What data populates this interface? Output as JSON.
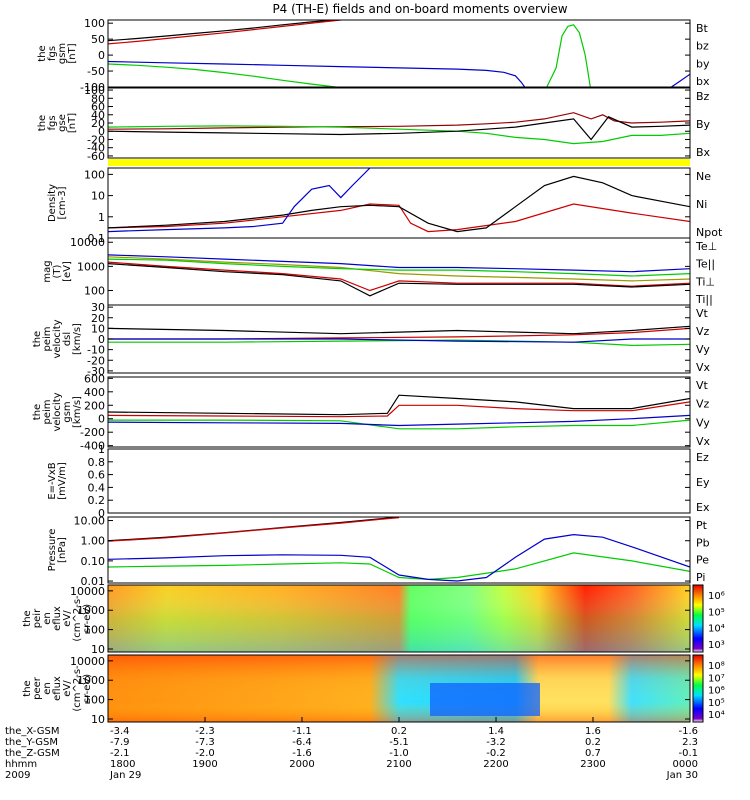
{
  "title": "P4 (TH-E) fields and on-board moments overview",
  "chart_data": [
    {
      "type": "line",
      "panel": "fgs_gsm",
      "ylabel": [
        "the",
        "fgs",
        "gsm",
        "[nT]"
      ],
      "ylim": [
        -100,
        110
      ],
      "yticks": [
        100,
        50,
        0,
        -50,
        -100
      ],
      "series": [
        {
          "name": "Bt",
          "color": "#000000",
          "x": [
            0,
            0.05,
            0.1,
            0.15,
            0.2,
            0.25,
            0.3,
            0.35,
            0.4
          ],
          "y": [
            45,
            52,
            60,
            68,
            76,
            85,
            95,
            104,
            112
          ]
        },
        {
          "name": "bz",
          "color": "#cc0000",
          "x": [
            0,
            0.05,
            0.1,
            0.15,
            0.2,
            0.25,
            0.3,
            0.35,
            0.4
          ],
          "y": [
            35,
            43,
            52,
            61,
            70,
            80,
            90,
            100,
            110
          ]
        },
        {
          "name": "by",
          "color": "#00cc00",
          "x": [
            0,
            0.05,
            0.1,
            0.15,
            0.2,
            0.25,
            0.3,
            0.35,
            0.4,
            0.45,
            0.75,
            0.77,
            0.78,
            0.79,
            0.8,
            0.81,
            0.82,
            0.83,
            0.85
          ],
          "y": [
            -28,
            -32,
            -38,
            -45,
            -55,
            -66,
            -79,
            -91,
            -102,
            -115,
            -115,
            -40,
            60,
            90,
            95,
            70,
            0,
            -115,
            -115
          ]
        },
        {
          "name": "bx",
          "color": "#0000cc",
          "x": [
            0,
            0.1,
            0.2,
            0.3,
            0.4,
            0.5,
            0.6,
            0.65,
            0.68,
            0.7,
            0.71,
            0.72,
            0.96,
            0.98,
            1.0
          ],
          "y": [
            -20,
            -24,
            -28,
            -32,
            -36,
            -40,
            -44,
            -48,
            -54,
            -65,
            -85,
            -110,
            -110,
            -85,
            -60
          ]
        }
      ]
    },
    {
      "type": "line",
      "panel": "fgs_gse",
      "ylabel": [
        "the",
        "fgs",
        "gse",
        "[nT]"
      ],
      "ylim": [
        -65,
        105
      ],
      "yticks": [
        100,
        80,
        60,
        40,
        20,
        0,
        -20,
        -40,
        -60
      ],
      "series": [
        {
          "name": "Bz",
          "color": "#990000",
          "x": [
            0,
            0.1,
            0.2,
            0.3,
            0.4,
            0.5,
            0.6,
            0.65,
            0.7,
            0.75,
            0.8,
            0.83,
            0.85,
            0.87,
            0.9,
            0.95,
            1.0
          ],
          "y": [
            5,
            6,
            8,
            10,
            11,
            12,
            15,
            18,
            22,
            30,
            45,
            30,
            40,
            25,
            20,
            22,
            25
          ]
        },
        {
          "name": "By",
          "color": "#00cc00",
          "x": [
            0,
            0.1,
            0.2,
            0.3,
            0.4,
            0.5,
            0.6,
            0.65,
            0.7,
            0.75,
            0.8,
            0.85,
            0.9,
            0.95,
            1.0
          ],
          "y": [
            10,
            12,
            13,
            12,
            10,
            5,
            0,
            -5,
            -15,
            -20,
            -30,
            -25,
            -10,
            -10,
            -5
          ]
        },
        {
          "name": "Bx",
          "color": "#000000",
          "x": [
            0,
            0.1,
            0.2,
            0.3,
            0.4,
            0.5,
            0.6,
            0.65,
            0.7,
            0.75,
            0.8,
            0.83,
            0.86,
            0.9,
            0.95,
            1.0
          ],
          "y": [
            0,
            -2,
            -4,
            -6,
            -8,
            -5,
            0,
            5,
            10,
            20,
            30,
            -20,
            35,
            10,
            12,
            15
          ]
        }
      ]
    },
    {
      "type": "line",
      "panel": "density",
      "ylabel": [
        "Density",
        "[cm-3]"
      ],
      "yscale": "log",
      "ylim": [
        0.1,
        200
      ],
      "yticks": [
        100,
        10,
        1,
        0.1
      ],
      "ytick_labels": [
        "100",
        "10",
        "1",
        "0.1"
      ],
      "series": [
        {
          "name": "Ne",
          "color": "#cc0000",
          "x": [
            0,
            0.1,
            0.2,
            0.3,
            0.4,
            0.45,
            0.5,
            0.52,
            0.55,
            0.6,
            0.7,
            0.8,
            0.9,
            1.0
          ],
          "y": [
            0.3,
            0.35,
            0.5,
            1.0,
            2.0,
            4.0,
            3.5,
            0.5,
            0.2,
            0.25,
            0.6,
            4.0,
            1.5,
            0.6
          ]
        },
        {
          "name": "Ni",
          "color": "#000000",
          "x": [
            0,
            0.1,
            0.2,
            0.3,
            0.35,
            0.4,
            0.45,
            0.5,
            0.55,
            0.6,
            0.65,
            0.7,
            0.75,
            0.8,
            0.85,
            0.9,
            1.0
          ],
          "y": [
            0.3,
            0.4,
            0.6,
            1.2,
            2.0,
            3.0,
            3.5,
            3.0,
            0.5,
            0.2,
            0.3,
            3.0,
            30,
            80,
            40,
            10,
            3.0
          ]
        },
        {
          "name": "Npot",
          "color": "#0000cc",
          "x": [
            0,
            0.1,
            0.2,
            0.25,
            0.3,
            0.32,
            0.35,
            0.38,
            0.4,
            0.42,
            0.45
          ],
          "y": [
            0.2,
            0.25,
            0.3,
            0.35,
            0.5,
            3.0,
            20,
            30,
            8,
            30,
            200
          ]
        }
      ]
    },
    {
      "type": "line",
      "panel": "temperature",
      "ylabel": [
        "mag",
        "(T)",
        "[eV]"
      ],
      "yscale": "log",
      "ylim": [
        25,
        15000
      ],
      "yticks": [
        10000,
        1000,
        100
      ],
      "ytick_labels": [
        "10000",
        "1000",
        "100"
      ],
      "series": [
        {
          "name": "Te⊥",
          "color": "#cc0000",
          "x": [
            0,
            0.1,
            0.2,
            0.3,
            0.4,
            0.45,
            0.5,
            0.6,
            0.7,
            0.8,
            0.9,
            1.0
          ],
          "y": [
            1500,
            1000,
            700,
            500,
            300,
            100,
            250,
            200,
            200,
            200,
            150,
            200
          ]
        },
        {
          "name": "Te||",
          "color": "#000000",
          "x": [
            0,
            0.1,
            0.2,
            0.3,
            0.4,
            0.45,
            0.5,
            0.6,
            0.7,
            0.8,
            0.9,
            1.0
          ],
          "y": [
            1300,
            900,
            600,
            450,
            250,
            60,
            200,
            180,
            180,
            180,
            140,
            180
          ]
        },
        {
          "name": "Ti⊥",
          "color": "#999900",
          "x": [
            0,
            0.1,
            0.2,
            0.3,
            0.4,
            0.5,
            0.6,
            0.7,
            0.8,
            0.9,
            1.0
          ],
          "y": [
            2500,
            2000,
            1500,
            1200,
            900,
            500,
            400,
            350,
            300,
            250,
            300
          ]
        },
        {
          "name": "Ti||",
          "color": "#00cc00",
          "x": [
            0,
            0.1,
            0.2,
            0.3,
            0.4,
            0.5,
            0.6,
            0.7,
            0.8,
            0.9,
            1.0
          ],
          "y": [
            2000,
            1800,
            1300,
            1000,
            800,
            700,
            700,
            600,
            500,
            400,
            500
          ]
        },
        {
          "name": "",
          "color": "#0000cc",
          "x": [
            0,
            0.1,
            0.2,
            0.3,
            0.4,
            0.5,
            0.6,
            0.7,
            0.8,
            0.9,
            1.0
          ],
          "y": [
            3000,
            2500,
            2000,
            1600,
            1300,
            900,
            900,
            800,
            700,
            600,
            800
          ]
        }
      ]
    },
    {
      "type": "line",
      "panel": "peim_velocity_dsl",
      "ylabel": [
        "the",
        "peim",
        "velocity",
        "dsl",
        "[km/s]"
      ],
      "ylim": [
        -32,
        32
      ],
      "yticks": [
        30,
        20,
        10,
        0,
        -10,
        -20,
        -30
      ],
      "series": [
        {
          "name": "Vt",
          "color": "#000000",
          "x": [
            0,
            0.2,
            0.4,
            0.6,
            0.8,
            0.9,
            1.0
          ],
          "y": [
            10,
            8,
            5,
            8,
            5,
            8,
            12
          ]
        },
        {
          "name": "Vz",
          "color": "#cc0000",
          "x": [
            0,
            0.2,
            0.4,
            0.6,
            0.8,
            0.9,
            1.0
          ],
          "y": [
            0,
            0,
            1,
            2,
            4,
            6,
            10
          ]
        },
        {
          "name": "Vy",
          "color": "#00cc00",
          "x": [
            0,
            0.2,
            0.4,
            0.6,
            0.8,
            0.9,
            1.0
          ],
          "y": [
            -3,
            -3,
            -2,
            -1,
            -3,
            -6,
            -5
          ]
        },
        {
          "name": "Vx",
          "color": "#0000cc",
          "x": [
            0,
            0.2,
            0.4,
            0.6,
            0.8,
            0.9,
            1.0
          ],
          "y": [
            0,
            0,
            0,
            -2,
            -3,
            0,
            0
          ]
        }
      ]
    },
    {
      "type": "line",
      "panel": "peim_velocity_gsm",
      "ylabel": [
        "the",
        "peim",
        "velocity",
        "gsm",
        "[km/s]"
      ],
      "ylim": [
        -420,
        620
      ],
      "yticks": [
        600,
        400,
        200,
        0,
        -200,
        -400
      ],
      "series": [
        {
          "name": "Vt",
          "color": "#000000",
          "x": [
            0,
            0.2,
            0.4,
            0.48,
            0.5,
            0.6,
            0.7,
            0.8,
            0.9,
            1.0
          ],
          "y": [
            100,
            80,
            60,
            80,
            350,
            300,
            250,
            150,
            150,
            300
          ]
        },
        {
          "name": "Vz",
          "color": "#cc0000",
          "x": [
            0,
            0.2,
            0.4,
            0.48,
            0.5,
            0.6,
            0.7,
            0.8,
            0.9,
            1.0
          ],
          "y": [
            50,
            40,
            30,
            40,
            200,
            200,
            150,
            120,
            120,
            250
          ]
        },
        {
          "name": "Vy",
          "color": "#00cc00",
          "x": [
            0,
            0.2,
            0.4,
            0.5,
            0.6,
            0.7,
            0.8,
            0.9,
            1.0
          ],
          "y": [
            -20,
            -20,
            -30,
            -150,
            -150,
            -120,
            -100,
            -100,
            -20
          ]
        },
        {
          "name": "Vx",
          "color": "#0000cc",
          "x": [
            0,
            0.2,
            0.4,
            0.5,
            0.6,
            0.7,
            0.8,
            0.9,
            1.0
          ],
          "y": [
            -50,
            -60,
            -70,
            -100,
            -80,
            -60,
            -40,
            0,
            50
          ]
        }
      ]
    },
    {
      "type": "line",
      "panel": "efield",
      "ylabel": [
        "E=-VxB",
        "[mV/m]"
      ],
      "ylim": [
        0,
        1.0
      ],
      "yticks": [
        1.0,
        0.8,
        0.6,
        0.4,
        0.2,
        0.0
      ],
      "series": [
        {
          "name": "Ez",
          "color": "#cc0000",
          "x": [],
          "y": []
        },
        {
          "name": "Ey",
          "color": "#00cc00",
          "x": [],
          "y": []
        },
        {
          "name": "Ex",
          "color": "#0000cc",
          "x": [],
          "y": []
        }
      ]
    },
    {
      "type": "line",
      "panel": "pressure",
      "ylabel": [
        "Pressure",
        "[nPa]"
      ],
      "yscale": "log",
      "ylim": [
        0.008,
        15
      ],
      "yticks": [
        10,
        1,
        0.1,
        0.01
      ],
      "ytick_labels": [
        "10.00",
        "1.00",
        "0.10",
        "0.01"
      ],
      "series": [
        {
          "name": "Pt",
          "color": "#000000",
          "x": [
            0,
            0.1,
            0.2,
            0.3,
            0.4,
            0.5
          ],
          "y": [
            1.0,
            1.5,
            2.5,
            4.5,
            8,
            15
          ]
        },
        {
          "name": "Pb",
          "color": "#cc0000",
          "x": [
            0,
            0.1,
            0.2,
            0.3,
            0.4,
            0.5
          ],
          "y": [
            0.95,
            1.4,
            2.4,
            4.3,
            7.5,
            14
          ]
        },
        {
          "name": "Pe",
          "color": "#00cc00",
          "x": [
            0,
            0.1,
            0.2,
            0.3,
            0.4,
            0.45,
            0.5,
            0.55,
            0.6,
            0.7,
            0.8,
            0.9,
            1.0
          ],
          "y": [
            0.05,
            0.055,
            0.06,
            0.07,
            0.08,
            0.07,
            0.015,
            0.012,
            0.015,
            0.04,
            0.25,
            0.1,
            0.03
          ]
        },
        {
          "name": "Pi",
          "color": "#0000cc",
          "x": [
            0,
            0.1,
            0.2,
            0.3,
            0.4,
            0.45,
            0.5,
            0.55,
            0.6,
            0.65,
            0.7,
            0.75,
            0.8,
            0.85,
            0.9,
            1.0
          ],
          "y": [
            0.12,
            0.14,
            0.18,
            0.2,
            0.19,
            0.15,
            0.02,
            0.012,
            0.01,
            0.015,
            0.15,
            1.2,
            2.0,
            1.5,
            0.5,
            0.05
          ]
        }
      ]
    },
    {
      "type": "heatmap",
      "panel": "peir_en_eflux",
      "ylabel": [
        "the",
        "peir",
        "en",
        "eflux",
        "eV/",
        "(cm^2-s-",
        "sr-eV)"
      ],
      "yscale": "log",
      "ylim": [
        7,
        20000
      ],
      "yticks": [
        10000,
        1000,
        100,
        10
      ],
      "ytick_labels": [
        "10000",
        "1000",
        "100",
        "10"
      ],
      "colorbar_ticks": [
        "10⁶",
        "10⁵",
        "10⁴",
        "10³"
      ]
    },
    {
      "type": "heatmap",
      "panel": "peer_en_eflux",
      "ylabel": [
        "the",
        "peer",
        "en",
        "eflux",
        "eV/",
        "(cm^2-s-",
        "sr-eV)"
      ],
      "yscale": "log",
      "ylim": [
        7,
        20000
      ],
      "yticks": [
        10000,
        1000,
        100,
        10
      ],
      "ytick_labels": [
        "10000",
        "1000",
        "100",
        "10"
      ],
      "colorbar_ticks": [
        "10⁸",
        "10⁷",
        "10⁶",
        "10⁵",
        "10⁴"
      ]
    }
  ],
  "xaxis": {
    "row_labels": [
      "the_X-GSM",
      "the_Y-GSM",
      "the_Z-GSM",
      "hhmm",
      "2009"
    ],
    "columns": [
      {
        "x": 0.0,
        "values": [
          "-3.4",
          "-7.9",
          "-2.1",
          "1800",
          "Jan 29"
        ]
      },
      {
        "x": 0.1667,
        "values": [
          "-2.3",
          "-7.3",
          "-2.0",
          "1900",
          ""
        ]
      },
      {
        "x": 0.3333,
        "values": [
          "-1.1",
          "-6.4",
          "-1.6",
          "2000",
          ""
        ]
      },
      {
        "x": 0.5,
        "values": [
          "0.2",
          "-5.1",
          "-1.0",
          "2100",
          ""
        ]
      },
      {
        "x": 0.6667,
        "values": [
          "1.4",
          "-3.2",
          "-0.2",
          "2200",
          ""
        ]
      },
      {
        "x": 0.8333,
        "values": [
          "1.6",
          "0.2",
          "0.7",
          "2300",
          ""
        ]
      },
      {
        "x": 1.0,
        "values": [
          "-1.6",
          "2.3",
          "-0.1",
          "0000",
          "Jan 30"
        ]
      }
    ]
  }
}
